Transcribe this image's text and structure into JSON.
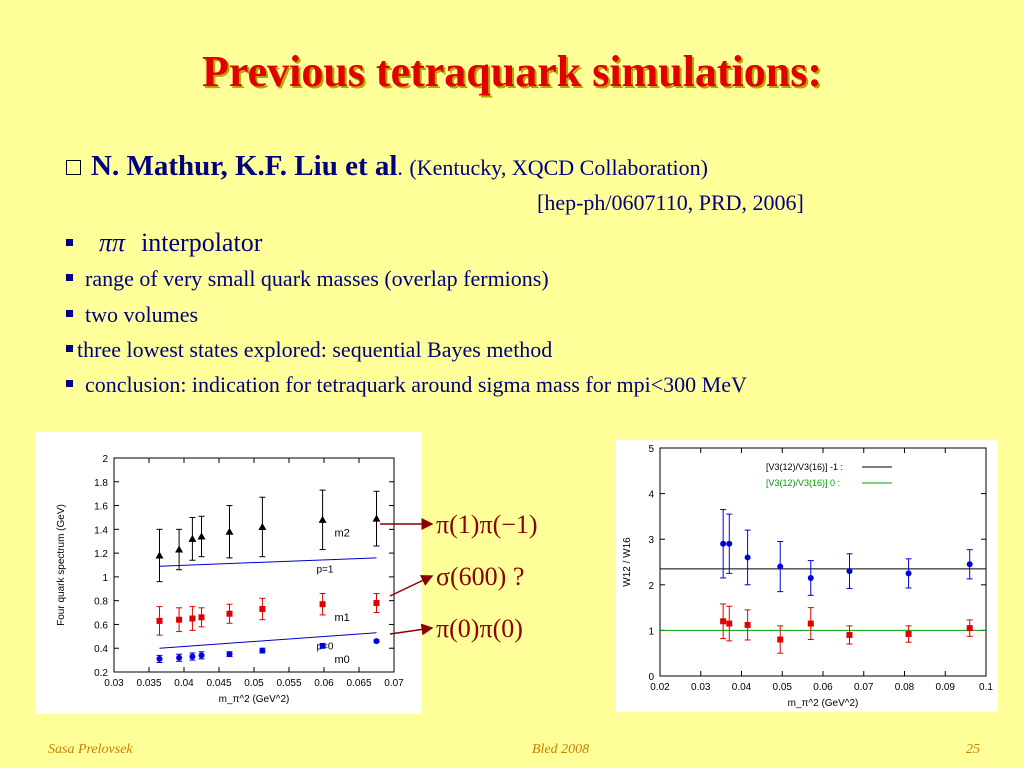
{
  "title": "Previous tetraquark simulations:",
  "reference": {
    "authors": "N. Mathur, K.F. Liu et al",
    "period": ".",
    "institution": "(Kentucky, XQCD Collaboration)",
    "citation": "[hep-ph/0607110, PRD, 2006]"
  },
  "bullets": [
    {
      "pi": "ππ",
      "text": "interpolator"
    },
    {
      "text": "range of very small quark masses (overlap fermions)"
    },
    {
      "text": "two volumes"
    },
    {
      "text": "three lowest states explored: sequential Bayes method"
    },
    {
      "text": "conclusion: indication for tetraquark around sigma mass for mpi<300 MeV"
    }
  ],
  "labels": {
    "l1": "π(1)π(−1)",
    "l2": "σ(600) ?",
    "l3": "π(0)π(0)"
  },
  "footer": {
    "author": "Sasa Prelovsek",
    "event": "Bled 2008",
    "page": "25"
  },
  "colors": {
    "title": "#e00000",
    "text": "#000080",
    "footer": "#c88000",
    "label": "#8b0000",
    "background": "#ffff99"
  },
  "chart_data": [
    {
      "type": "scatter",
      "ylabel": "Four quark spectrum (GeV)",
      "xlabel": "m_π^2 (GeV^2)",
      "xlim": [
        0.03,
        0.07
      ],
      "ylim": [
        0.2,
        2
      ],
      "xticks": [
        0.03,
        0.035,
        0.04,
        0.045,
        0.05,
        0.055,
        0.06,
        0.065,
        0.07
      ],
      "yticks": [
        0.2,
        0.4,
        0.6,
        0.8,
        1,
        1.2,
        1.4,
        1.6,
        1.8,
        2
      ],
      "series": [
        {
          "name": "m2",
          "color": "#000000",
          "marker": "triangle",
          "x": [
            0.0365,
            0.0393,
            0.0412,
            0.0425,
            0.0465,
            0.0512,
            0.0598,
            0.0675
          ],
          "y": [
            1.18,
            1.23,
            1.32,
            1.34,
            1.38,
            1.42,
            1.48,
            1.49
          ],
          "err": [
            0.22,
            0.17,
            0.18,
            0.17,
            0.22,
            0.25,
            0.25,
            0.23
          ]
        },
        {
          "name": "m1",
          "color": "#e00000",
          "marker": "square",
          "x": [
            0.0365,
            0.0393,
            0.0412,
            0.0425,
            0.0465,
            0.0512,
            0.0598,
            0.0675
          ],
          "y": [
            0.63,
            0.64,
            0.65,
            0.66,
            0.69,
            0.73,
            0.77,
            0.78
          ],
          "err": [
            0.12,
            0.1,
            0.1,
            0.08,
            0.08,
            0.09,
            0.09,
            0.08
          ]
        },
        {
          "name": "m0",
          "color": "#0000e0",
          "marker": "circle",
          "x": [
            0.0365,
            0.0393,
            0.0412,
            0.0425,
            0.0465,
            0.0512,
            0.0598,
            0.0675
          ],
          "y": [
            0.31,
            0.32,
            0.33,
            0.34,
            0.35,
            0.38,
            0.42,
            0.46
          ],
          "err": [
            0.03,
            0.03,
            0.03,
            0.03,
            0.02,
            0.02,
            0.02,
            0.01
          ]
        }
      ],
      "lines": [
        {
          "name": "p=1",
          "x": [
            0.0365,
            0.0675
          ],
          "y": [
            1.09,
            1.16
          ]
        },
        {
          "name": "p=0",
          "x": [
            0.0365,
            0.0675
          ],
          "y": [
            0.4,
            0.53
          ]
        }
      ]
    },
    {
      "type": "scatter",
      "ylabel": "W12 / W16",
      "xlabel": "m_π^2 (GeV^2)",
      "xlim": [
        0.02,
        0.1
      ],
      "ylim": [
        0,
        5
      ],
      "xticks": [
        0.02,
        0.03,
        0.04,
        0.05,
        0.06,
        0.07,
        0.08,
        0.09,
        0.1
      ],
      "yticks": [
        0,
        1,
        2,
        3,
        4,
        5
      ],
      "legend": [
        "[V3(12)/V3(16)] -1 :",
        "[V3(12)/V3(16)] 0 :"
      ],
      "series": [
        {
          "name": "[V3(12)/V3(16)] -1 :",
          "color": "#0000e0",
          "marker": "circle",
          "x": [
            0.0355,
            0.037,
            0.0415,
            0.0495,
            0.057,
            0.0665,
            0.081,
            0.096
          ],
          "y": [
            2.9,
            2.9,
            2.6,
            2.4,
            2.15,
            2.3,
            2.25,
            2.45
          ],
          "err": [
            0.75,
            0.65,
            0.6,
            0.55,
            0.38,
            0.38,
            0.32,
            0.32
          ],
          "ref_line": 2.35,
          "ref_color": "#000000"
        },
        {
          "name": "[V3(12)/V3(16)] 0 :",
          "color": "#e00000",
          "marker": "square",
          "x": [
            0.0355,
            0.037,
            0.0415,
            0.0495,
            0.057,
            0.0665,
            0.081,
            0.096
          ],
          "y": [
            1.2,
            1.15,
            1.12,
            0.8,
            1.15,
            0.9,
            0.92,
            1.05
          ],
          "err": [
            0.38,
            0.38,
            0.33,
            0.3,
            0.35,
            0.2,
            0.18,
            0.18
          ],
          "ref_line": 1.0,
          "ref_color": "#00a000"
        }
      ]
    }
  ]
}
